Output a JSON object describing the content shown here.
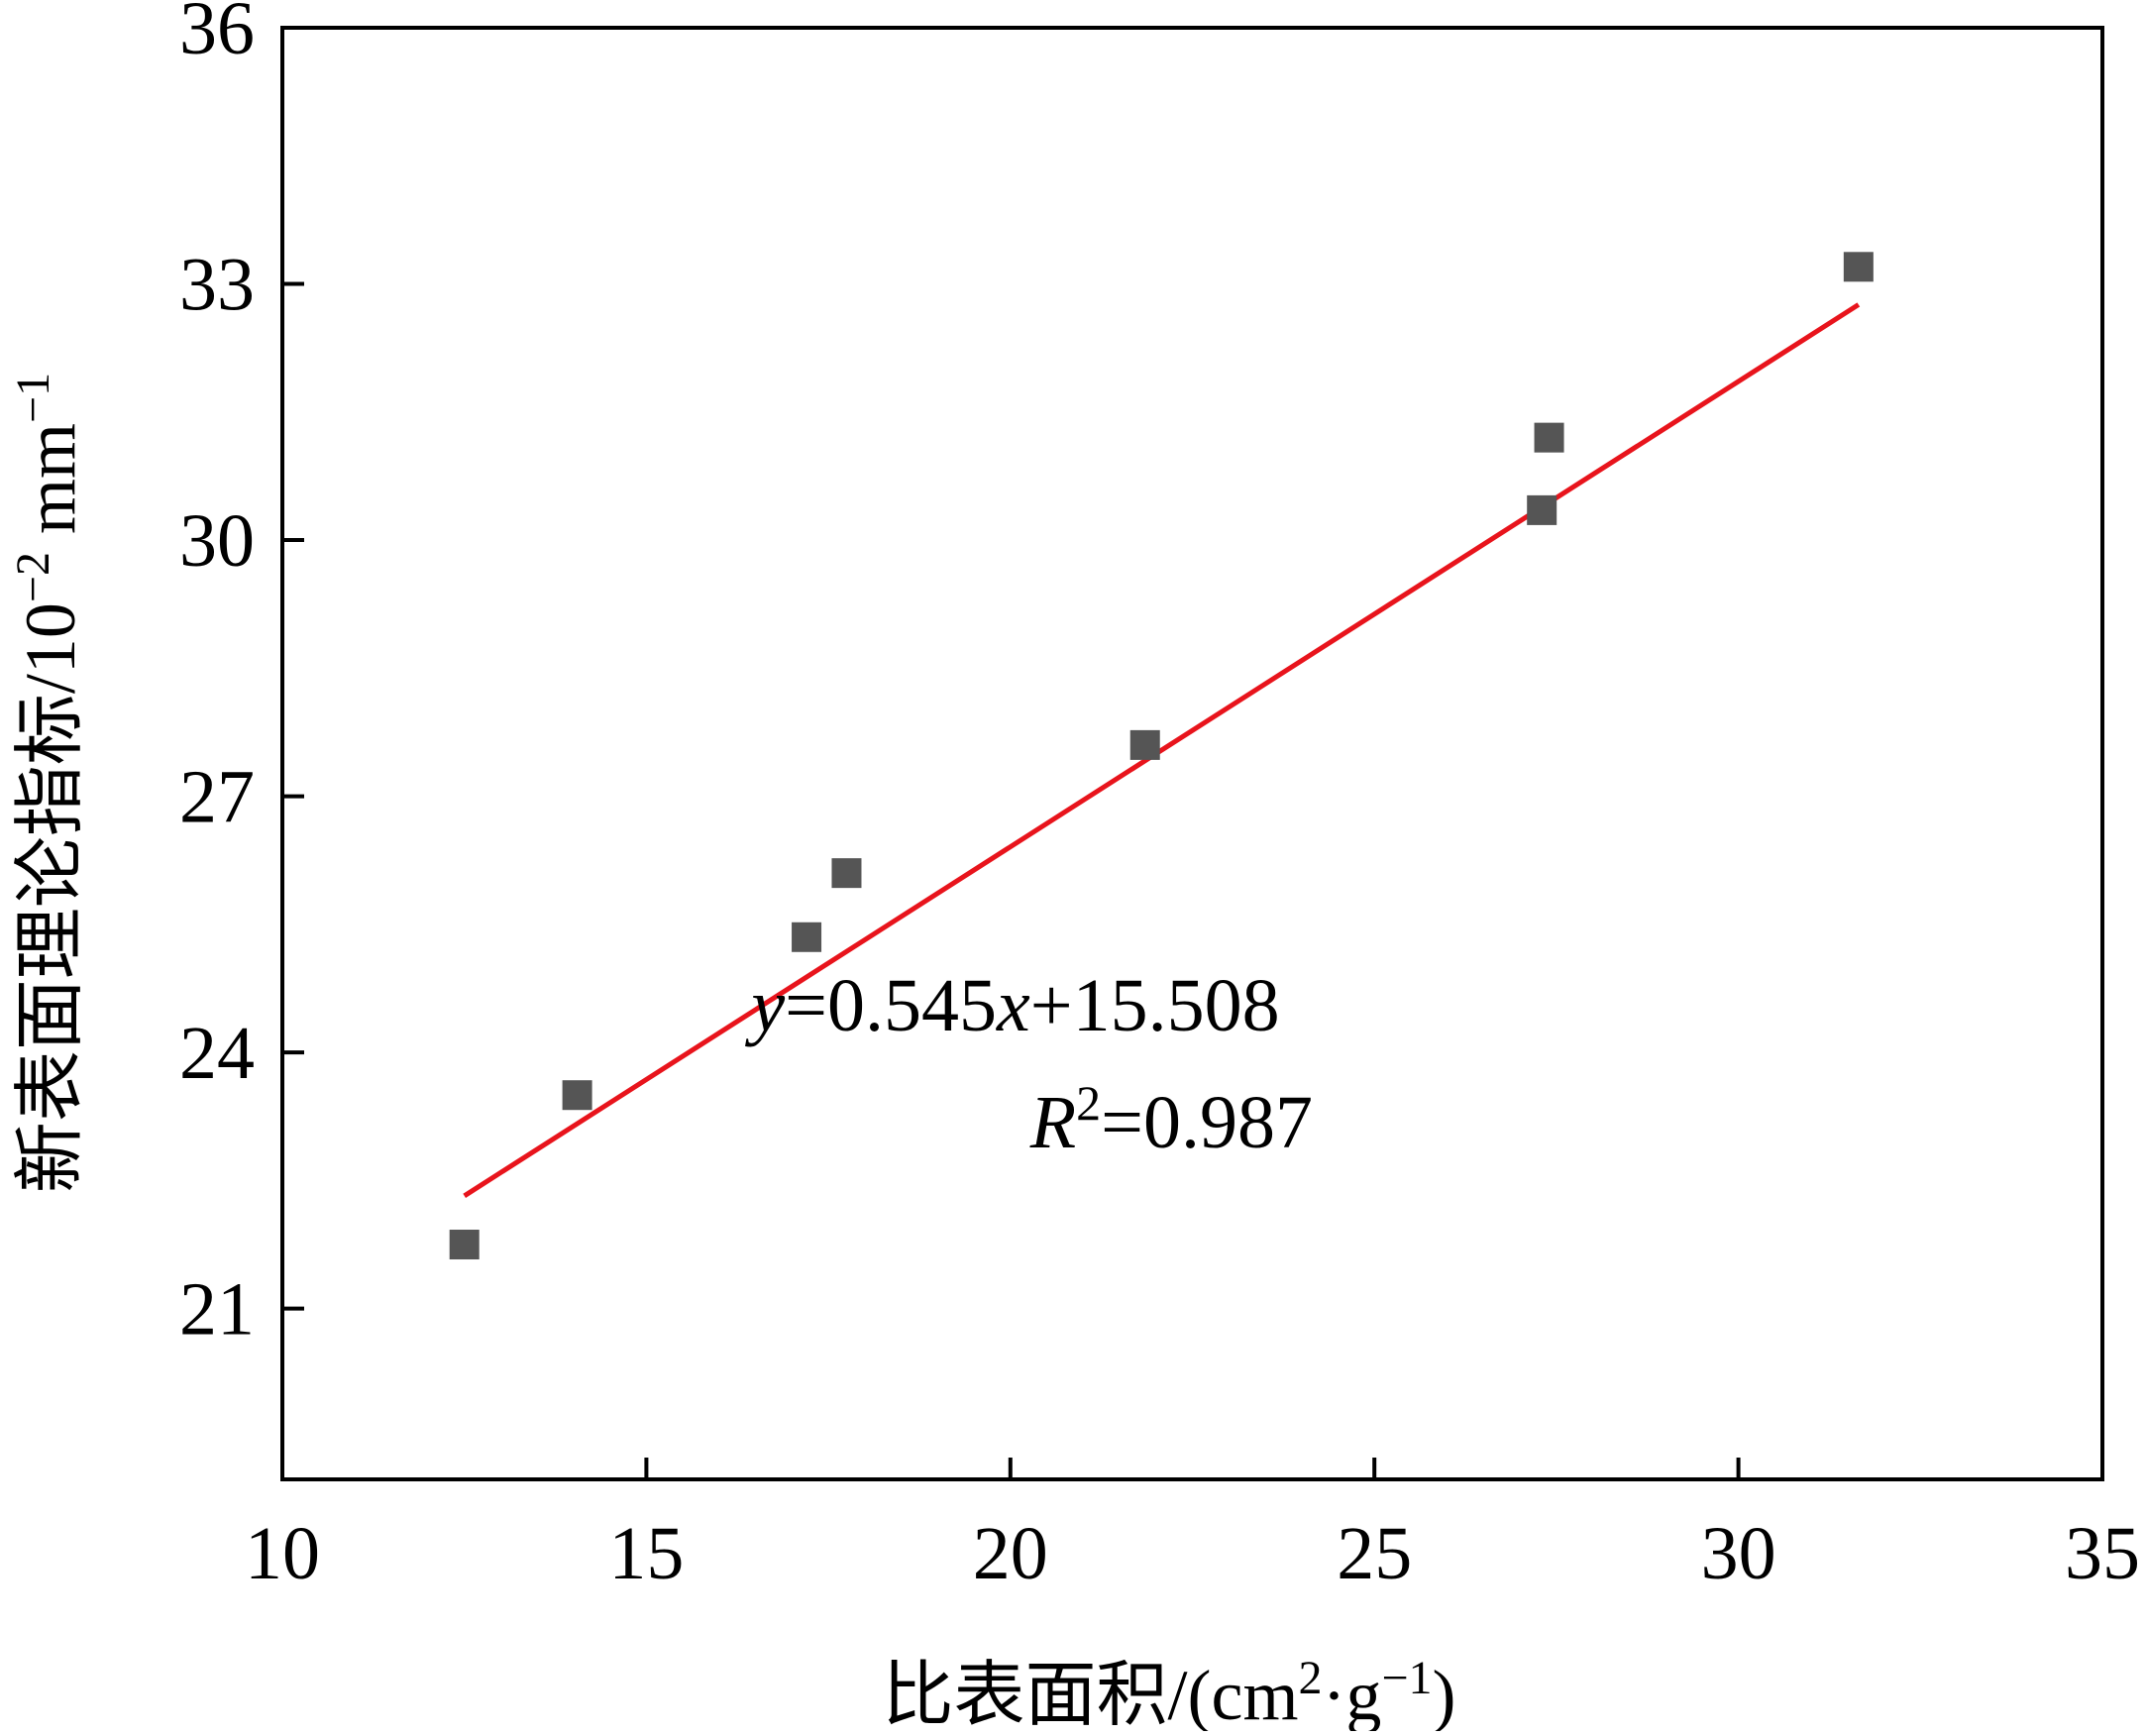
{
  "chart_data": {
    "type": "scatter",
    "x_axis": {
      "label": "比表面积/(cm²·g⁻¹)",
      "label_main": "比表面积/(cm",
      "label_sup1": "2",
      "label_mid": "·g",
      "label_sup2": "−1",
      "label_end": ")",
      "range": [
        10,
        35
      ],
      "ticks": [
        10,
        15,
        20,
        25,
        30,
        35
      ]
    },
    "y_axis": {
      "label": "新表面理论指标/10⁻² mm⁻¹",
      "label_main": "新表面理论指标/10",
      "label_sup1": "−2",
      "label_mid": " mm",
      "label_sup2": "−1",
      "range": [
        19,
        36
      ],
      "ticks": [
        21,
        24,
        27,
        30,
        33,
        36
      ]
    },
    "series": [
      {
        "marker": "square",
        "color": "#555555",
        "points": [
          {
            "x": 12.5,
            "y": 21.75
          },
          {
            "x": 14.05,
            "y": 23.5
          },
          {
            "x": 17.2,
            "y": 25.35
          },
          {
            "x": 17.75,
            "y": 26.1
          },
          {
            "x": 21.85,
            "y": 27.6
          },
          {
            "x": 27.3,
            "y": 30.35
          },
          {
            "x": 27.4,
            "y": 31.2
          },
          {
            "x": 31.65,
            "y": 33.2
          }
        ]
      }
    ],
    "fit_line": {
      "color": "#e8141c",
      "slope": 0.545,
      "intercept": 15.508,
      "x_range": [
        12.5,
        31.65
      ]
    },
    "annotation": {
      "eq_y": "y",
      "eq_mid": "=0.545",
      "eq_x": "x",
      "eq_end": "+15.508",
      "r2_r": "R",
      "r2_sup": "2",
      "r2_end": "=0.987"
    },
    "grid": false
  }
}
